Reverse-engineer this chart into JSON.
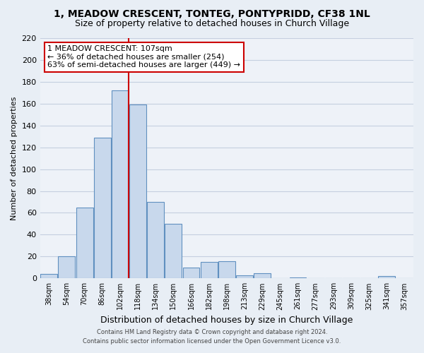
{
  "title": "1, MEADOW CRESCENT, TONTEG, PONTYPRIDD, CF38 1NL",
  "subtitle": "Size of property relative to detached houses in Church Village",
  "xlabel": "Distribution of detached houses by size in Church Village",
  "ylabel": "Number of detached properties",
  "bar_color": "#c8d8ec",
  "bar_edge_color": "#6090c0",
  "categories": [
    "38sqm",
    "54sqm",
    "70sqm",
    "86sqm",
    "102sqm",
    "118sqm",
    "134sqm",
    "150sqm",
    "166sqm",
    "182sqm",
    "198sqm",
    "213sqm",
    "229sqm",
    "245sqm",
    "261sqm",
    "277sqm",
    "293sqm",
    "309sqm",
    "325sqm",
    "341sqm",
    "357sqm"
  ],
  "values": [
    4,
    20,
    65,
    129,
    172,
    159,
    70,
    50,
    10,
    15,
    16,
    3,
    5,
    0,
    1,
    0,
    0,
    0,
    0,
    2,
    0
  ],
  "ylim": [
    0,
    220
  ],
  "yticks": [
    0,
    20,
    40,
    60,
    80,
    100,
    120,
    140,
    160,
    180,
    200,
    220
  ],
  "vline_x_index": 4.5,
  "vline_color": "#cc0000",
  "annotation_line1": "1 MEADOW CRESCENT: 107sqm",
  "annotation_line2": "← 36% of detached houses are smaller (254)",
  "annotation_line3": "63% of semi-detached houses are larger (449) →",
  "annotation_box_color": "#ffffff",
  "annotation_box_edge_color": "#cc0000",
  "footer1": "Contains HM Land Registry data © Crown copyright and database right 2024.",
  "footer2": "Contains public sector information licensed under the Open Government Licence v3.0.",
  "background_color": "#e8eef5",
  "plot_background_color": "#eef2f8",
  "grid_color": "#c5cfe0",
  "title_fontsize": 10,
  "subtitle_fontsize": 9,
  "ylabel_fontsize": 8,
  "xlabel_fontsize": 9
}
